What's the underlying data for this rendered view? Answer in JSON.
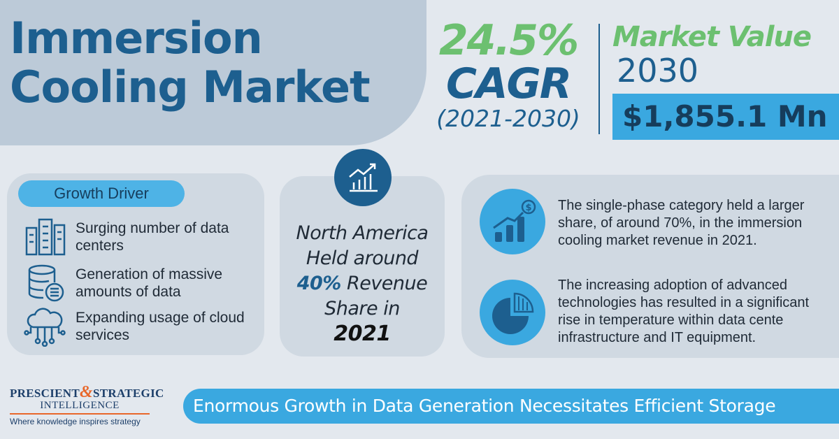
{
  "title": {
    "line1": "Immersion",
    "line2": "Cooling Market"
  },
  "cagr": {
    "value": "24.5%",
    "label": "CAGR",
    "period": "(2021-2030)"
  },
  "market_value": {
    "label": "Market Value",
    "year": "2030",
    "amount": "$1,855.1 Mn"
  },
  "growth_driver": {
    "heading": "Growth Driver",
    "items": [
      {
        "icon": "data-center-icon",
        "text": "Surging number of data centers"
      },
      {
        "icon": "database-icon",
        "text": "Generation of massive amounts of data"
      },
      {
        "icon": "cloud-network-icon",
        "text": "Expanding usage of cloud services"
      }
    ]
  },
  "regional": {
    "icon": "growth-chart-icon",
    "line1": "North America",
    "line2": "Held around",
    "pct": "40%",
    "line3": "Revenue",
    "line4": "Share in",
    "year": "2021"
  },
  "facts": [
    {
      "icon": "bar-growth-dollar-icon",
      "text": "The single-phase category held a larger share, of around 70%, in the immersion cooling market revenue in 2021."
    },
    {
      "icon": "pie-chart-icon",
      "text": "The increasing adoption of advanced technologies has resulted in a significant rise in temperature within data cente infrastructure and IT equipment."
    }
  ],
  "logo": {
    "line1a": "PRESCIENT",
    "amp": "&",
    "line1b": "STRATEGIC",
    "line2": "INTELLIGENCE",
    "tagline": "Where knowledge inspires strategy"
  },
  "banner": "Enormous Growth in Data Generation Necessitates Efficient Storage",
  "colors": {
    "navy": "#1d5f8f",
    "green": "#6cc070",
    "sky": "#3aa8e0",
    "orange": "#e8672a"
  }
}
